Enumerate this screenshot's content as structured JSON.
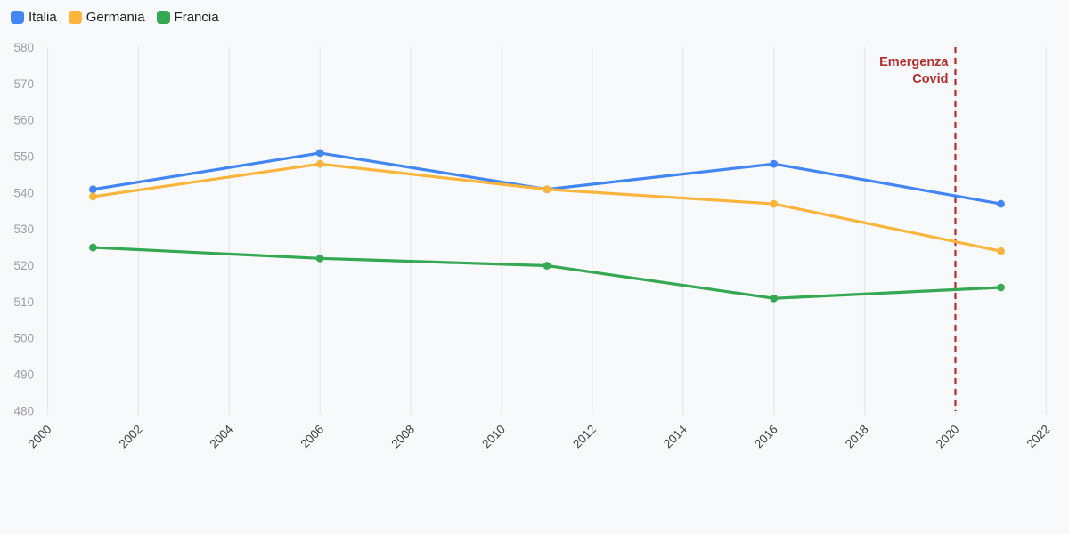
{
  "colors": {
    "background": "#f8f9fa",
    "gridline": "#e8e8e8",
    "y_tick_color": "#9aa0a6",
    "x_tick_color": "#3c4043",
    "legend_text": "#202124",
    "annotation_red": "#b42b2b"
  },
  "chart_data": {
    "type": "line",
    "x": [
      2001,
      2006,
      2011,
      2016,
      2021
    ],
    "series": [
      {
        "name": "Italia",
        "color": "#4285f4",
        "values": [
          541,
          551,
          541,
          548,
          537
        ]
      },
      {
        "name": "Germania",
        "color": "#fbb53c",
        "values": [
          539,
          548,
          541,
          537,
          524
        ]
      },
      {
        "name": "Francia",
        "color": "#34a853",
        "values": [
          525,
          522,
          520,
          511,
          514
        ]
      }
    ],
    "title": "",
    "xlabel": "",
    "ylabel": "",
    "xlim": [
      2000,
      2022
    ],
    "ylim": [
      480,
      580
    ],
    "x_ticks": [
      2000,
      2002,
      2004,
      2006,
      2008,
      2010,
      2012,
      2014,
      2016,
      2018,
      2020,
      2022
    ],
    "y_ticks": [
      480,
      490,
      500,
      510,
      520,
      530,
      540,
      550,
      560,
      570,
      580
    ],
    "grid": "vertical-only",
    "legend_position": "top-left",
    "annotation": {
      "label": "Emergenza Covid",
      "lines": [
        "Emergenza",
        "Covid"
      ],
      "x": 2020,
      "style": "dashed-vertical",
      "color": "#b42b2b"
    }
  }
}
